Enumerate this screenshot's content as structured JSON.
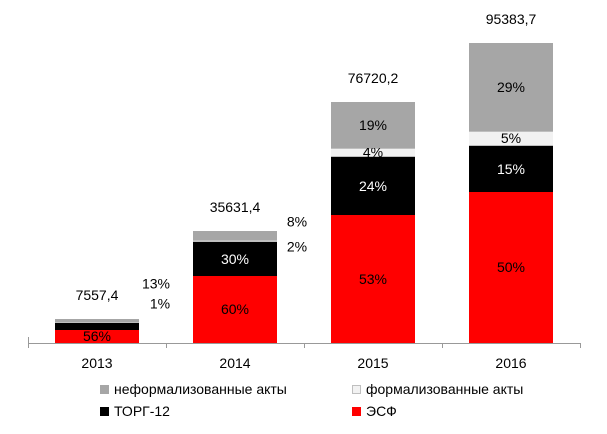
{
  "chart_data": {
    "type": "bar",
    "stacked": true,
    "title": "",
    "xlabel": "",
    "ylabel": "",
    "grid": false,
    "categories": [
      "2013",
      "2014",
      "2015",
      "2016"
    ],
    "totals": [
      7557.4,
      35631.4,
      76720.2,
      95383.7
    ],
    "total_labels": [
      "7557,4",
      "35631,4",
      "76720,2",
      "95383,7"
    ],
    "series": [
      {
        "name": "ЭСФ",
        "color": "#ff0000",
        "percents": [
          56,
          60,
          53,
          50
        ],
        "labels": [
          "56%",
          "60%",
          "53%",
          "50%"
        ],
        "placements": [
          "inside",
          "inside",
          "inside",
          "inside"
        ],
        "label_color": "#000000"
      },
      {
        "name": "ТОРГ-12",
        "color": "#000000",
        "percents": [
          30,
          30,
          24,
          15
        ],
        "labels": [
          "",
          "30%",
          "24%",
          "15%"
        ],
        "placements": [
          "none",
          "inside",
          "inside",
          "inside"
        ],
        "label_color": "#ffffff"
      },
      {
        "name": "формализованные акты",
        "color": "#f2f2f2",
        "border": "#bfbfbf",
        "percents": [
          1,
          2,
          4,
          5
        ],
        "labels": [
          "1%",
          "2%",
          "4%",
          "5%"
        ],
        "placements": [
          "outside",
          "outside",
          "inside",
          "inside"
        ],
        "label_color": "#000000"
      },
      {
        "name": "неформализованные акты",
        "color": "#a6a6a6",
        "percents": [
          13,
          8,
          19,
          29
        ],
        "labels": [
          "13%",
          "8%",
          "19%",
          "29%"
        ],
        "placements": [
          "outside",
          "outside",
          "inside",
          "inside"
        ],
        "label_color": "#000000"
      }
    ],
    "legend": {
      "position": "bottom",
      "items": [
        {
          "label": "неформализованные акты",
          "color": "#a6a6a6",
          "border": "#a6a6a6"
        },
        {
          "label": "формализованные акты",
          "color": "#f2f2f2",
          "border": "#bfbfbf"
        },
        {
          "label": "ТОРГ-12",
          "color": "#000000",
          "border": "#000000"
        },
        {
          "label": "ЭСФ",
          "color": "#ff0000",
          "border": "#ff0000"
        }
      ]
    },
    "axis": {
      "color": "#999999",
      "baseline_values_visible": false
    }
  }
}
